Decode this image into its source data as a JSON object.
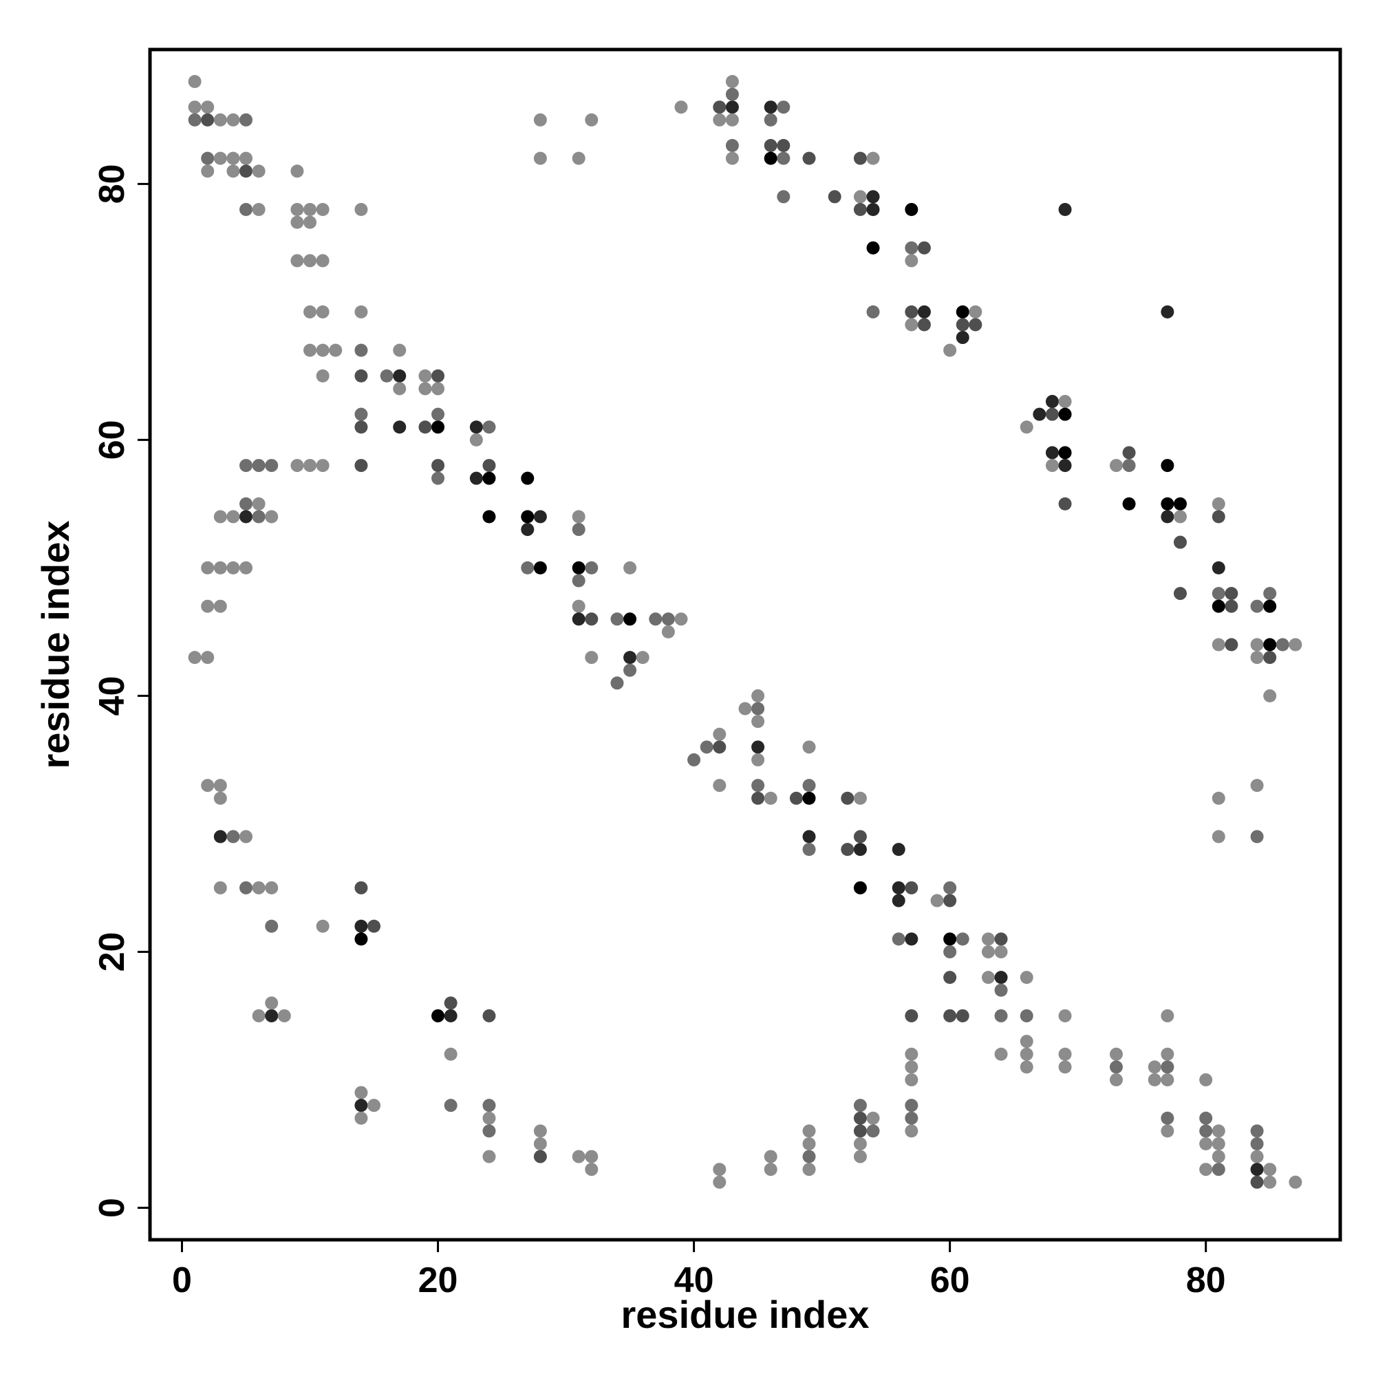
{
  "chart_data": {
    "type": "scatter",
    "title": "",
    "xlabel": "residue index",
    "ylabel": "residue index",
    "xlim": [
      -2.5,
      90.5
    ],
    "ylim": [
      -2.5,
      90.5
    ],
    "xticks": [
      0,
      20,
      40,
      60,
      80
    ],
    "yticks": [
      0,
      20,
      40,
      60,
      80
    ],
    "grid": false,
    "legend": "none",
    "shade_colors": {
      "1": "#8c8c8c",
      "2": "#6e6e6e",
      "3": "#4f4f4f",
      "4": "#262626",
      "5": "#000000"
    },
    "points": [
      [
        1,
        88,
        1
      ],
      [
        1,
        86,
        1
      ],
      [
        1,
        85,
        2
      ],
      [
        2,
        86,
        1
      ],
      [
        2,
        85,
        3
      ],
      [
        2,
        82,
        2
      ],
      [
        2,
        81,
        1
      ],
      [
        3,
        85,
        1
      ],
      [
        3,
        82,
        1
      ],
      [
        4,
        85,
        1
      ],
      [
        4,
        82,
        1
      ],
      [
        4,
        81,
        1
      ],
      [
        5,
        85,
        2
      ],
      [
        5,
        82,
        1
      ],
      [
        5,
        81,
        3
      ],
      [
        6,
        81,
        1
      ],
      [
        5,
        78,
        2
      ],
      [
        6,
        78,
        1
      ],
      [
        9,
        81,
        1
      ],
      [
        9,
        78,
        1
      ],
      [
        9,
        77,
        1
      ],
      [
        10,
        78,
        1
      ],
      [
        10,
        77,
        1
      ],
      [
        11,
        78,
        1
      ],
      [
        9,
        74,
        1
      ],
      [
        10,
        74,
        1
      ],
      [
        11,
        74,
        1
      ],
      [
        10,
        70,
        1
      ],
      [
        11,
        70,
        1
      ],
      [
        10,
        67,
        1
      ],
      [
        11,
        67,
        1
      ],
      [
        12,
        67,
        1
      ],
      [
        11,
        65,
        1
      ],
      [
        14,
        78,
        1
      ],
      [
        14,
        70,
        1
      ],
      [
        14,
        67,
        2
      ],
      [
        14,
        65,
        3
      ],
      [
        16,
        65,
        2
      ],
      [
        17,
        65,
        4
      ],
      [
        17,
        67,
        1
      ],
      [
        17,
        64,
        1
      ],
      [
        19,
        65,
        1
      ],
      [
        20,
        65,
        3
      ],
      [
        19,
        64,
        1
      ],
      [
        20,
        64,
        1
      ],
      [
        14,
        62,
        2
      ],
      [
        14,
        61,
        3
      ],
      [
        17,
        61,
        4
      ],
      [
        19,
        61,
        3
      ],
      [
        20,
        61,
        5
      ],
      [
        20,
        62,
        2
      ],
      [
        14,
        58,
        3
      ],
      [
        20,
        58,
        3
      ],
      [
        20,
        57,
        2
      ],
      [
        23,
        61,
        4
      ],
      [
        24,
        61,
        2
      ],
      [
        23,
        60,
        1
      ],
      [
        23,
        57,
        4
      ],
      [
        24,
        57,
        5
      ],
      [
        24,
        58,
        3
      ],
      [
        24,
        54,
        5
      ],
      [
        27,
        57,
        5
      ],
      [
        27,
        54,
        5
      ],
      [
        28,
        54,
        4
      ],
      [
        27,
        53,
        4
      ],
      [
        27,
        50,
        2
      ],
      [
        28,
        50,
        5
      ],
      [
        31,
        54,
        1
      ],
      [
        31,
        53,
        2
      ],
      [
        31,
        50,
        5
      ],
      [
        32,
        50,
        2
      ],
      [
        31,
        49,
        2
      ],
      [
        31,
        47,
        1
      ],
      [
        31,
        46,
        4
      ],
      [
        32,
        46,
        3
      ],
      [
        32,
        43,
        1
      ],
      [
        34,
        46,
        2
      ],
      [
        35,
        46,
        5
      ],
      [
        35,
        50,
        1
      ],
      [
        35,
        43,
        4
      ],
      [
        36,
        43,
        1
      ],
      [
        35,
        42,
        2
      ],
      [
        34,
        41,
        2
      ],
      [
        37,
        46,
        2
      ],
      [
        38,
        46,
        2
      ],
      [
        39,
        46,
        1
      ],
      [
        38,
        45,
        1
      ],
      [
        9,
        58,
        1
      ],
      [
        10,
        58,
        1
      ],
      [
        11,
        58,
        1
      ],
      [
        5,
        58,
        2
      ],
      [
        6,
        58,
        2
      ],
      [
        7,
        58,
        2
      ],
      [
        5,
        55,
        2
      ],
      [
        6,
        55,
        1
      ],
      [
        3,
        54,
        1
      ],
      [
        4,
        54,
        1
      ],
      [
        5,
        54,
        4
      ],
      [
        6,
        54,
        2
      ],
      [
        7,
        54,
        1
      ],
      [
        2,
        50,
        1
      ],
      [
        3,
        50,
        1
      ],
      [
        4,
        50,
        1
      ],
      [
        5,
        50,
        1
      ],
      [
        2,
        47,
        1
      ],
      [
        3,
        47,
        1
      ],
      [
        1,
        43,
        1
      ],
      [
        2,
        43,
        1
      ],
      [
        2,
        33,
        1
      ],
      [
        3,
        33,
        1
      ],
      [
        3,
        32,
        1
      ],
      [
        3,
        29,
        4
      ],
      [
        4,
        29,
        2
      ],
      [
        5,
        29,
        1
      ],
      [
        3,
        25,
        1
      ],
      [
        5,
        25,
        2
      ],
      [
        6,
        25,
        1
      ],
      [
        7,
        25,
        1
      ],
      [
        7,
        22,
        2
      ],
      [
        6,
        15,
        1
      ],
      [
        7,
        15,
        4
      ],
      [
        8,
        15,
        1
      ],
      [
        7,
        16,
        1
      ],
      [
        11,
        22,
        1
      ],
      [
        14,
        25,
        3
      ],
      [
        14,
        22,
        4
      ],
      [
        15,
        22,
        3
      ],
      [
        14,
        21,
        5
      ],
      [
        14,
        9,
        1
      ],
      [
        14,
        8,
        4
      ],
      [
        15,
        8,
        1
      ],
      [
        14,
        7,
        1
      ],
      [
        20,
        15,
        5
      ],
      [
        21,
        15,
        4
      ],
      [
        21,
        16,
        3
      ],
      [
        24,
        15,
        3
      ],
      [
        21,
        12,
        1
      ],
      [
        21,
        8,
        2
      ],
      [
        24,
        8,
        2
      ],
      [
        24,
        7,
        1
      ],
      [
        24,
        6,
        2
      ],
      [
        24,
        4,
        1
      ],
      [
        28,
        6,
        1
      ],
      [
        28,
        5,
        1
      ],
      [
        28,
        4,
        3
      ],
      [
        31,
        4,
        1
      ],
      [
        32,
        4,
        1
      ],
      [
        32,
        3,
        1
      ],
      [
        28,
        85,
        1
      ],
      [
        28,
        82,
        1
      ],
      [
        31,
        82,
        1
      ],
      [
        32,
        85,
        1
      ],
      [
        39,
        86,
        1
      ],
      [
        42,
        86,
        3
      ],
      [
        43,
        86,
        4
      ],
      [
        42,
        85,
        1
      ],
      [
        43,
        85,
        1
      ],
      [
        43,
        88,
        1
      ],
      [
        43,
        87,
        2
      ],
      [
        43,
        83,
        2
      ],
      [
        43,
        82,
        1
      ],
      [
        46,
        86,
        4
      ],
      [
        47,
        86,
        2
      ],
      [
        46,
        85,
        2
      ],
      [
        46,
        83,
        3
      ],
      [
        47,
        83,
        3
      ],
      [
        46,
        82,
        5
      ],
      [
        47,
        82,
        2
      ],
      [
        49,
        82,
        3
      ],
      [
        47,
        79,
        2
      ],
      [
        51,
        79,
        3
      ],
      [
        53,
        82,
        3
      ],
      [
        54,
        82,
        1
      ],
      [
        53,
        79,
        1
      ],
      [
        54,
        79,
        4
      ],
      [
        53,
        78,
        3
      ],
      [
        54,
        78,
        4
      ],
      [
        54,
        75,
        5
      ],
      [
        54,
        70,
        2
      ],
      [
        57,
        78,
        5
      ],
      [
        57,
        75,
        2
      ],
      [
        58,
        75,
        3
      ],
      [
        57,
        74,
        1
      ],
      [
        57,
        70,
        3
      ],
      [
        58,
        70,
        4
      ],
      [
        57,
        69,
        1
      ],
      [
        58,
        69,
        3
      ],
      [
        60,
        67,
        1
      ],
      [
        61,
        70,
        5
      ],
      [
        62,
        70,
        1
      ],
      [
        61,
        69,
        3
      ],
      [
        62,
        69,
        3
      ],
      [
        61,
        68,
        4
      ],
      [
        66,
        61,
        1
      ],
      [
        67,
        62,
        4
      ],
      [
        68,
        62,
        3
      ],
      [
        68,
        63,
        4
      ],
      [
        69,
        63,
        1
      ],
      [
        69,
        62,
        5
      ],
      [
        68,
        59,
        4
      ],
      [
        69,
        59,
        5
      ],
      [
        68,
        58,
        1
      ],
      [
        69,
        58,
        4
      ],
      [
        69,
        55,
        3
      ],
      [
        69,
        78,
        4
      ],
      [
        73,
        58,
        1
      ],
      [
        74,
        58,
        2
      ],
      [
        74,
        59,
        3
      ],
      [
        74,
        55,
        5
      ],
      [
        77,
        70,
        4
      ],
      [
        77,
        58,
        5
      ],
      [
        77,
        55,
        5
      ],
      [
        78,
        55,
        5
      ],
      [
        77,
        54,
        4
      ],
      [
        78,
        54,
        1
      ],
      [
        78,
        52,
        3
      ],
      [
        78,
        48,
        3
      ],
      [
        81,
        55,
        1
      ],
      [
        81,
        54,
        3
      ],
      [
        81,
        50,
        4
      ],
      [
        81,
        48,
        2
      ],
      [
        82,
        48,
        3
      ],
      [
        81,
        47,
        5
      ],
      [
        82,
        47,
        3
      ],
      [
        81,
        44,
        1
      ],
      [
        82,
        44,
        3
      ],
      [
        84,
        47,
        2
      ],
      [
        85,
        48,
        2
      ],
      [
        85,
        47,
        5
      ],
      [
        84,
        44,
        1
      ],
      [
        84,
        43,
        1
      ],
      [
        85,
        44,
        5
      ],
      [
        85,
        43,
        3
      ],
      [
        86,
        44,
        2
      ],
      [
        87,
        44,
        1
      ],
      [
        85,
        40,
        1
      ],
      [
        40,
        35,
        2
      ],
      [
        41,
        36,
        2
      ],
      [
        42,
        36,
        3
      ],
      [
        42,
        37,
        1
      ],
      [
        44,
        39,
        1
      ],
      [
        45,
        39,
        2
      ],
      [
        45,
        40,
        1
      ],
      [
        45,
        38,
        1
      ],
      [
        45,
        36,
        4
      ],
      [
        45,
        35,
        1
      ],
      [
        42,
        33,
        1
      ],
      [
        45,
        33,
        2
      ],
      [
        45,
        32,
        3
      ],
      [
        46,
        32,
        1
      ],
      [
        48,
        32,
        3
      ],
      [
        49,
        32,
        5
      ],
      [
        49,
        33,
        2
      ],
      [
        49,
        36,
        1
      ],
      [
        52,
        32,
        3
      ],
      [
        53,
        32,
        1
      ],
      [
        49,
        29,
        4
      ],
      [
        49,
        28,
        2
      ],
      [
        52,
        28,
        3
      ],
      [
        53,
        28,
        4
      ],
      [
        53,
        29,
        3
      ],
      [
        56,
        28,
        4
      ],
      [
        53,
        25,
        5
      ],
      [
        56,
        25,
        4
      ],
      [
        57,
        25,
        3
      ],
      [
        56,
        24,
        4
      ],
      [
        59,
        24,
        1
      ],
      [
        60,
        24,
        3
      ],
      [
        60,
        25,
        2
      ],
      [
        56,
        21,
        2
      ],
      [
        57,
        21,
        4
      ],
      [
        60,
        21,
        5
      ],
      [
        61,
        21,
        2
      ],
      [
        60,
        20,
        2
      ],
      [
        63,
        21,
        1
      ],
      [
        64,
        21,
        3
      ],
      [
        63,
        20,
        1
      ],
      [
        64,
        20,
        1
      ],
      [
        63,
        18,
        1
      ],
      [
        64,
        18,
        4
      ],
      [
        64,
        17,
        2
      ],
      [
        66,
        18,
        1
      ],
      [
        60,
        18,
        3
      ],
      [
        57,
        15,
        3
      ],
      [
        60,
        15,
        3
      ],
      [
        61,
        15,
        3
      ],
      [
        64,
        15,
        2
      ],
      [
        66,
        15,
        2
      ],
      [
        69,
        15,
        1
      ],
      [
        77,
        15,
        1
      ],
      [
        66,
        13,
        1
      ],
      [
        66,
        12,
        1
      ],
      [
        66,
        11,
        1
      ],
      [
        64,
        12,
        1
      ],
      [
        69,
        12,
        1
      ],
      [
        69,
        11,
        1
      ],
      [
        73,
        12,
        1
      ],
      [
        73,
        11,
        2
      ],
      [
        73,
        10,
        1
      ],
      [
        76,
        11,
        1
      ],
      [
        77,
        11,
        2
      ],
      [
        77,
        12,
        1
      ],
      [
        76,
        10,
        1
      ],
      [
        77,
        10,
        1
      ],
      [
        80,
        10,
        1
      ],
      [
        80,
        7,
        2
      ],
      [
        81,
        6,
        1
      ],
      [
        80,
        6,
        2
      ],
      [
        80,
        5,
        1
      ],
      [
        81,
        5,
        1
      ],
      [
        81,
        4,
        1
      ],
      [
        80,
        3,
        1
      ],
      [
        81,
        3,
        2
      ],
      [
        84,
        6,
        2
      ],
      [
        84,
        5,
        2
      ],
      [
        84,
        4,
        1
      ],
      [
        84,
        3,
        4
      ],
      [
        85,
        3,
        1
      ],
      [
        84,
        2,
        3
      ],
      [
        85,
        2,
        1
      ],
      [
        87,
        2,
        1
      ],
      [
        77,
        7,
        2
      ],
      [
        77,
        6,
        1
      ],
      [
        57,
        12,
        1
      ],
      [
        57,
        11,
        1
      ],
      [
        57,
        10,
        1
      ],
      [
        57,
        8,
        2
      ],
      [
        57,
        7,
        2
      ],
      [
        57,
        6,
        1
      ],
      [
        53,
        8,
        2
      ],
      [
        53,
        7,
        3
      ],
      [
        54,
        7,
        1
      ],
      [
        53,
        6,
        3
      ],
      [
        54,
        6,
        2
      ],
      [
        53,
        5,
        1
      ],
      [
        53,
        4,
        1
      ],
      [
        49,
        6,
        1
      ],
      [
        49,
        5,
        1
      ],
      [
        49,
        4,
        2
      ],
      [
        49,
        3,
        1
      ],
      [
        46,
        4,
        1
      ],
      [
        46,
        3,
        1
      ],
      [
        42,
        3,
        1
      ],
      [
        42,
        2,
        1
      ],
      [
        81,
        32,
        1
      ],
      [
        81,
        29,
        1
      ],
      [
        84,
        33,
        1
      ],
      [
        84,
        29,
        2
      ]
    ]
  }
}
